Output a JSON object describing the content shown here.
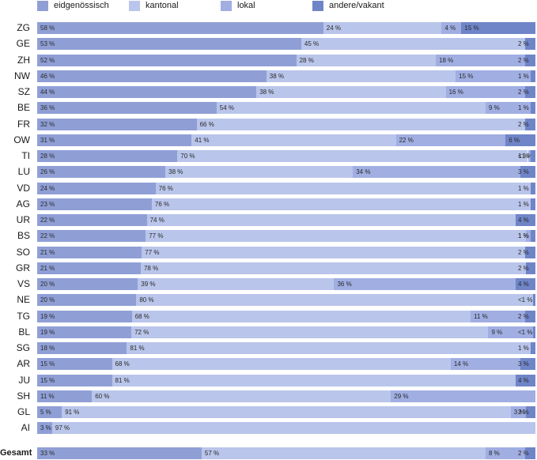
{
  "colors": {
    "eidg": "#8f9fd6",
    "kant": "#b9c5ea",
    "lokal": "#a0aee2",
    "andere": "#6f85c8"
  },
  "chart_data": {
    "type": "bar",
    "orientation": "horizontal",
    "stacked": true,
    "xlim": [
      0,
      100
    ],
    "legend_position": "top",
    "series": [
      {
        "name": "eidgenössisch",
        "color_key": "eidg"
      },
      {
        "name": "kantonal",
        "color_key": "kant"
      },
      {
        "name": "lokal",
        "color_key": "lokal"
      },
      {
        "name": "andere/vakant",
        "color_key": "andere"
      }
    ],
    "rows": [
      {
        "label": "ZG",
        "values": [
          58,
          24,
          4,
          15
        ],
        "labels": [
          "58 %",
          "24 %",
          "4 %",
          "15 %"
        ]
      },
      {
        "label": "GE",
        "values": [
          53,
          45,
          0,
          2
        ],
        "labels": [
          "53 %",
          "45 %",
          "",
          "2 %"
        ]
      },
      {
        "label": "ZH",
        "values": [
          52,
          28,
          18,
          2
        ],
        "labels": [
          "52 %",
          "28 %",
          "18 %",
          "2 %"
        ]
      },
      {
        "label": "NW",
        "values": [
          46,
          38,
          15,
          1
        ],
        "labels": [
          "46 %",
          "38 %",
          "15 %",
          "1 %"
        ]
      },
      {
        "label": "SZ",
        "values": [
          44,
          38,
          16,
          2
        ],
        "labels": [
          "44 %",
          "38 %",
          "16 %",
          "2 %"
        ]
      },
      {
        "label": "BE",
        "values": [
          36,
          54,
          9,
          1
        ],
        "labels": [
          "36 %",
          "54 %",
          "9 %",
          "1 %"
        ]
      },
      {
        "label": "FR",
        "values": [
          32,
          66,
          0,
          2
        ],
        "labels": [
          "32 %",
          "66 %",
          "",
          "2 %"
        ]
      },
      {
        "label": "OW",
        "values": [
          31,
          41,
          22,
          6
        ],
        "labels": [
          "31 %",
          "41 %",
          "22 %",
          "6 %"
        ]
      },
      {
        "label": "TI",
        "values": [
          28,
          70,
          0.5,
          1
        ],
        "labels": [
          "28 %",
          "70 %",
          "<1 %",
          "1 %"
        ]
      },
      {
        "label": "LU",
        "values": [
          26,
          38,
          34,
          3
        ],
        "labels": [
          "26 %",
          "38 %",
          "34 %",
          "3 %"
        ]
      },
      {
        "label": "VD",
        "values": [
          24,
          76,
          0,
          1
        ],
        "labels": [
          "24 %",
          "76 %",
          "",
          "1 %"
        ]
      },
      {
        "label": "AG",
        "values": [
          23,
          76,
          0,
          1
        ],
        "labels": [
          "23 %",
          "76 %",
          "",
          "1 %"
        ]
      },
      {
        "label": "UR",
        "values": [
          22,
          74,
          0,
          4
        ],
        "labels": [
          "22 %",
          "74 %",
          "",
          "4 %"
        ]
      },
      {
        "label": "BS",
        "values": [
          22,
          77,
          1,
          1
        ],
        "labels": [
          "22 %",
          "77 %",
          "1 %",
          "1 %"
        ]
      },
      {
        "label": "SO",
        "values": [
          21,
          77,
          0,
          2
        ],
        "labels": [
          "21 %",
          "77 %",
          "",
          "2 %"
        ]
      },
      {
        "label": "GR",
        "values": [
          21,
          78,
          0,
          2
        ],
        "labels": [
          "21 %",
          "78 %",
          "",
          "2 %"
        ]
      },
      {
        "label": "VS",
        "values": [
          20,
          39,
          36,
          4
        ],
        "labels": [
          "20 %",
          "39 %",
          "36 %",
          "4 %"
        ]
      },
      {
        "label": "NE",
        "values": [
          20,
          80,
          0,
          0.5
        ],
        "labels": [
          "20 %",
          "80 %",
          "",
          "<1 %"
        ]
      },
      {
        "label": "TG",
        "values": [
          19,
          68,
          11,
          2
        ],
        "labels": [
          "19 %",
          "68 %",
          "11 %",
          "2 %"
        ]
      },
      {
        "label": "BL",
        "values": [
          19,
          72,
          9,
          0.5
        ],
        "labels": [
          "19 %",
          "72 %",
          "9 %",
          "<1 %"
        ]
      },
      {
        "label": "SG",
        "values": [
          18,
          81,
          0,
          1
        ],
        "labels": [
          "18 %",
          "81 %",
          "",
          "1 %"
        ]
      },
      {
        "label": "AR",
        "values": [
          15,
          68,
          14,
          3
        ],
        "labels": [
          "15 %",
          "68 %",
          "14 %",
          "3 %"
        ]
      },
      {
        "label": "JU",
        "values": [
          15,
          81,
          0,
          4
        ],
        "labels": [
          "15 %",
          "81 %",
          "",
          "4 %"
        ]
      },
      {
        "label": "SH",
        "values": [
          11,
          60,
          29,
          0
        ],
        "labels": [
          "11 %",
          "60 %",
          "29 %",
          ""
        ]
      },
      {
        "label": "GL",
        "values": [
          5,
          91,
          3,
          2
        ],
        "labels": [
          "5 %",
          "91 %",
          "3 %",
          "2 %"
        ]
      },
      {
        "label": "AI",
        "values": [
          3,
          97,
          0,
          0
        ],
        "labels": [
          "3 %",
          "97 %",
          "",
          ""
        ]
      },
      {
        "label": "Gesamt",
        "values": [
          33,
          57,
          8,
          2
        ],
        "labels": [
          "33 %",
          "57 %",
          "8 %",
          "2 %"
        ],
        "total": true
      }
    ]
  }
}
